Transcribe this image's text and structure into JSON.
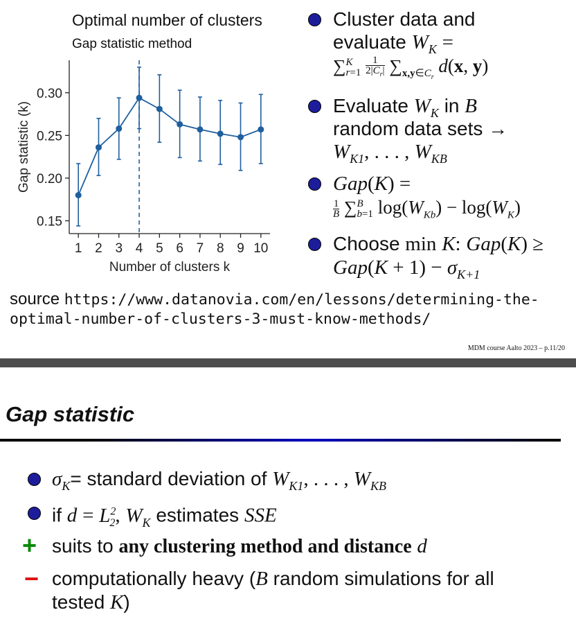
{
  "chart_data": {
    "type": "line",
    "title": "Optimal number of clusters",
    "subtitle": "Gap statistic method",
    "xlabel": "Number of clusters k",
    "ylabel": "Gap statistic (k)",
    "x": [
      1,
      2,
      3,
      4,
      5,
      6,
      7,
      8,
      9,
      10
    ],
    "y": [
      0.18,
      0.236,
      0.258,
      0.294,
      0.281,
      0.263,
      0.257,
      0.252,
      0.248,
      0.257
    ],
    "error_low": [
      0.144,
      0.203,
      0.222,
      0.258,
      0.242,
      0.224,
      0.22,
      0.216,
      0.209,
      0.217
    ],
    "error_high": [
      0.217,
      0.27,
      0.294,
      0.33,
      0.321,
      0.303,
      0.295,
      0.291,
      0.288,
      0.298
    ],
    "ylim": [
      0.135,
      0.338
    ],
    "yticks": [
      0.15,
      0.2,
      0.25,
      0.3
    ],
    "ytick_labels": [
      "0.15",
      "0.20",
      "0.25",
      "0.30"
    ],
    "xtick_labels": [
      "1",
      "2",
      "3",
      "4",
      "5",
      "6",
      "7",
      "8",
      "9",
      "10"
    ],
    "vline_x": 4,
    "grid": false,
    "line_color": "#1f5f9e"
  },
  "bullets_top": {
    "b1_line1": "Cluster data and",
    "b1_line2_text": "evaluate",
    "b2_line1_text": "Evaluate",
    "b2_line1_in": "in",
    "b2_line2": "random data sets →",
    "b4_text": "Choose",
    "b4_after": "Gap",
    "b4_line2": "Gap"
  },
  "source": {
    "label": "source",
    "url_line1": "https://www.datanovia.com/en/lessons/determining-the-",
    "url_line2": "optimal-number-of-clusters-3-must-know-methods/"
  },
  "footer": "MDM course Aalto 2023 – p.11/20",
  "section_title": "Gap statistic",
  "bullets_bottom": {
    "b1_text": "= standard deviation of",
    "b2_if": "if",
    "b2_estimates": "estimates",
    "b3_text": "suits to",
    "b3_bold": "any clustering method and distance",
    "b4_line1": "computationally heavy (",
    "b4_random": "random simulations for all",
    "b4_line2": "tested"
  },
  "colors": {
    "bullet": "#1d1d9c",
    "plus": "#0a8a0a",
    "minus": "#e01010",
    "chart": "#1f5f9e"
  },
  "icons": {
    "plus": "plus-icon",
    "minus": "minus-icon",
    "bullet": "bullet-dot"
  }
}
